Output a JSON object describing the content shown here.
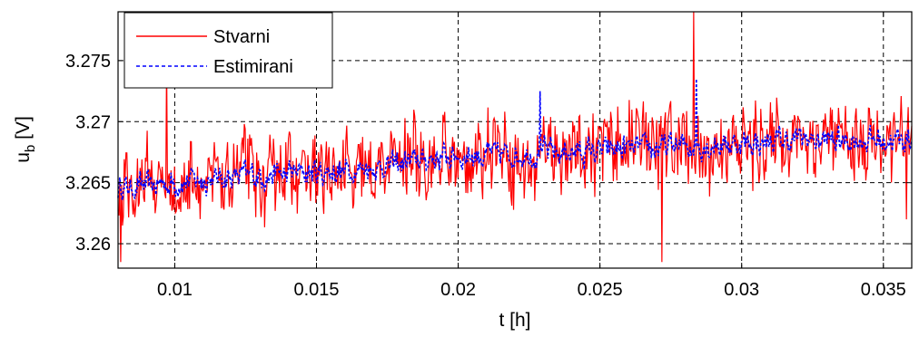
{
  "chart_data": {
    "type": "line",
    "xlabel": "t [h]",
    "ylabel_main": "u",
    "ylabel_sub": "b",
    "ylabel_unit": " [V]",
    "xlim": [
      0.008,
      0.036
    ],
    "ylim": [
      3.258,
      3.279
    ],
    "xticks": [
      0.01,
      0.015,
      0.02,
      0.025,
      0.03,
      0.035
    ],
    "xtick_labels": [
      "0.01",
      "0.015",
      "0.02",
      "0.025",
      "0.03",
      "0.035"
    ],
    "yticks": [
      3.26,
      3.265,
      3.27,
      3.275
    ],
    "ytick_labels": [
      "3.26",
      "3.265",
      "3.27",
      "3.275"
    ],
    "grid": true,
    "legend_position": "top-left",
    "series": [
      {
        "name": "Stvarni",
        "color": "#ff0000",
        "style": "solid",
        "trend": {
          "x": [
            0.008,
            0.012,
            0.016,
            0.02,
            0.024,
            0.028,
            0.032,
            0.036
          ],
          "y": [
            3.2645,
            3.2655,
            3.266,
            3.2672,
            3.2675,
            3.268,
            3.2685,
            3.2685
          ]
        },
        "spread": 0.004,
        "sample_count": 900,
        "extremes": [
          {
            "x": 0.0081,
            "y": 3.2585
          },
          {
            "x": 0.0283,
            "y": 3.279
          },
          {
            "x": 0.0272,
            "y": 3.2585
          },
          {
            "x": 0.0358,
            "y": 3.262
          },
          {
            "x": 0.0097,
            "y": 3.275
          }
        ]
      },
      {
        "name": "Estimirani",
        "color": "#0000ff",
        "style": "dashed",
        "trend": {
          "x": [
            0.008,
            0.012,
            0.016,
            0.02,
            0.024,
            0.028,
            0.032,
            0.036
          ],
          "y": [
            3.2645,
            3.2655,
            3.266,
            3.2672,
            3.2675,
            3.268,
            3.2685,
            3.2685
          ]
        },
        "spread": 0.0022,
        "sample_count": 900,
        "extremes": [
          {
            "x": 0.0229,
            "y": 3.2725
          },
          {
            "x": 0.0284,
            "y": 3.2735
          }
        ]
      }
    ]
  }
}
